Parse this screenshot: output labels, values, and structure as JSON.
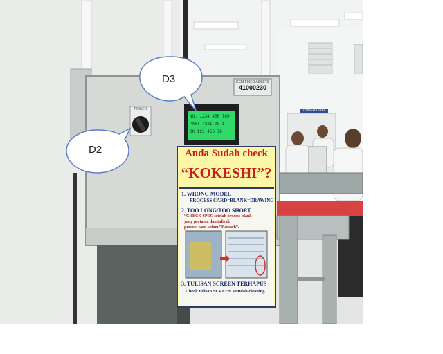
{
  "callouts": {
    "d3": "D3",
    "d2": "D2"
  },
  "asset_tag": {
    "line1": "GEM FIXED ASSETS",
    "number": "41000230"
  },
  "switch_label": "POWER",
  "wall_label": "UNDER COAT",
  "lcd": {
    "rows": [
      "NO. 1234  456  789",
      "PART  4321  00 1",
      "OK  123  456  78"
    ],
    "color": "#3dff7a"
  },
  "sign": {
    "title": "Anda Sudah check",
    "subtitle": "“KOKESHI”?",
    "item1_title": "1. WRONG MODEL",
    "item1_sub": "PROCESS CARD=BLANK=DRAWING",
    "item2_title": "2. TOO LONG/TOO SHORT",
    "item2_body1": "“CHECK SPEC setelah process blank",
    "item2_body2": "yang pertama dan tulis di",
    "item2_body3": "process card kolom “Remark”.",
    "item3_title": "3. TULISAN SCREEN TERHAPUS",
    "item3_body": "Check tulisan SCREEN sesudah cleaning",
    "title_color": "#cc1d1d",
    "background": "#fbf7a6"
  }
}
